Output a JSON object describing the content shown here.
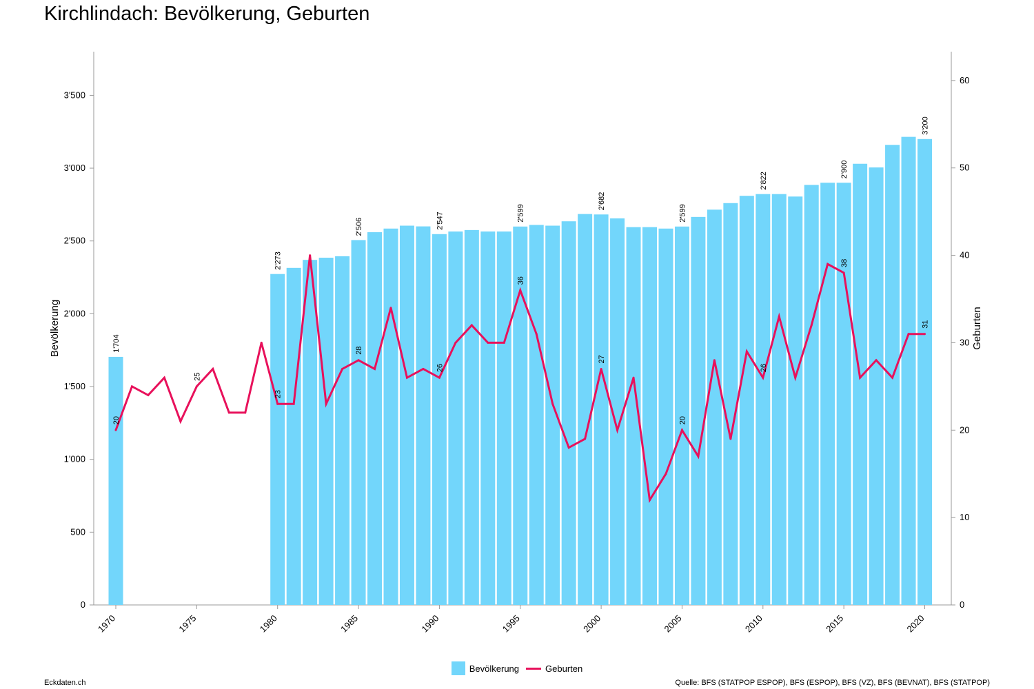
{
  "title": "Kirchlindach: Bevölkerung, Geburten",
  "footer": {
    "left": "Eckdaten.ch",
    "right": "Quelle: BFS (STATPOP ESPOP), BFS (ESPOP), BFS (VZ), BFS (BEVNAT), BFS (STATPOP)"
  },
  "legend": {
    "bar_label": "Bevölkerung",
    "line_label": "Geburten"
  },
  "colors": {
    "bar": "#72d6fb",
    "line": "#e8115b",
    "axis": "#999999"
  },
  "chart_data": {
    "type": "bar+line",
    "title": "Kirchlindach: Bevölkerung, Geburten",
    "ylabel_left": "Bevölkerung",
    "ylabel_right": "Geburten",
    "ylim_left": [
      0,
      3800
    ],
    "ylim_right": [
      0,
      63.3
    ],
    "yticks_left": [
      0,
      500,
      1000,
      1500,
      2000,
      2500,
      3000,
      3500
    ],
    "yticks_left_labels": [
      "0",
      "500",
      "1'000",
      "1'500",
      "2'000",
      "2'500",
      "3'000",
      "3'500"
    ],
    "yticks_right": [
      0,
      10,
      20,
      30,
      40,
      50,
      60
    ],
    "yticks_right_labels": [
      "0",
      "10",
      "20",
      "30",
      "40",
      "50",
      "60"
    ],
    "x_tick_labels": [
      "1970",
      "1975",
      "1980",
      "1985",
      "1990",
      "1995",
      "2000",
      "2005",
      "2010",
      "2015",
      "2020"
    ],
    "years": [
      1970,
      1971,
      1972,
      1973,
      1974,
      1975,
      1976,
      1977,
      1978,
      1979,
      1980,
      1981,
      1982,
      1983,
      1984,
      1985,
      1986,
      1987,
      1988,
      1989,
      1990,
      1991,
      1992,
      1993,
      1994,
      1995,
      1996,
      1997,
      1998,
      1999,
      2000,
      2001,
      2002,
      2003,
      2004,
      2005,
      2006,
      2007,
      2008,
      2009,
      2010,
      2011,
      2012,
      2013,
      2014,
      2015,
      2016,
      2017,
      2018,
      2019,
      2020
    ],
    "series": [
      {
        "name": "Bevölkerung",
        "kind": "bar",
        "axis": "left",
        "values": [
          1704,
          null,
          null,
          null,
          null,
          null,
          null,
          null,
          null,
          null,
          2273,
          2315,
          2370,
          2385,
          2395,
          2506,
          2560,
          2585,
          2605,
          2600,
          2547,
          2565,
          2575,
          2565,
          2565,
          2599,
          2610,
          2605,
          2635,
          2685,
          2682,
          2655,
          2595,
          2595,
          2585,
          2599,
          2665,
          2715,
          2760,
          2810,
          2822,
          2822,
          2805,
          2885,
          2900,
          2900,
          3030,
          3005,
          3160,
          3215,
          3200
        ],
        "labels": [
          {
            "year": 1970,
            "text": "1'704"
          },
          {
            "year": 1980,
            "text": "2'273"
          },
          {
            "year": 1985,
            "text": "2'506"
          },
          {
            "year": 1990,
            "text": "2'547"
          },
          {
            "year": 1995,
            "text": "2'599"
          },
          {
            "year": 2000,
            "text": "2'682"
          },
          {
            "year": 2005,
            "text": "2'599"
          },
          {
            "year": 2010,
            "text": "2'822"
          },
          {
            "year": 2015,
            "text": "2'900"
          },
          {
            "year": 2020,
            "text": "3'200"
          }
        ]
      },
      {
        "name": "Geburten",
        "kind": "line",
        "axis": "right",
        "values": [
          20,
          25,
          24,
          26,
          21,
          25,
          27,
          22,
          22,
          30,
          23,
          23,
          40,
          23,
          27,
          28,
          27,
          34,
          26,
          27,
          26,
          30,
          32,
          30,
          30,
          36,
          31,
          23,
          18,
          19,
          27,
          20,
          26,
          12,
          15,
          20,
          17,
          28,
          19,
          29,
          26,
          33,
          26,
          32,
          39,
          38,
          26,
          28,
          26,
          31,
          31
        ],
        "labels": [
          {
            "year": 1970,
            "text": "20"
          },
          {
            "year": 1975,
            "text": "25"
          },
          {
            "year": 1980,
            "text": "23"
          },
          {
            "year": 1985,
            "text": "28"
          },
          {
            "year": 1990,
            "text": "26"
          },
          {
            "year": 1995,
            "text": "36"
          },
          {
            "year": 2000,
            "text": "27"
          },
          {
            "year": 2005,
            "text": "20"
          },
          {
            "year": 2010,
            "text": "26"
          },
          {
            "year": 2015,
            "text": "38"
          },
          {
            "year": 2020,
            "text": "31"
          }
        ]
      }
    ]
  }
}
